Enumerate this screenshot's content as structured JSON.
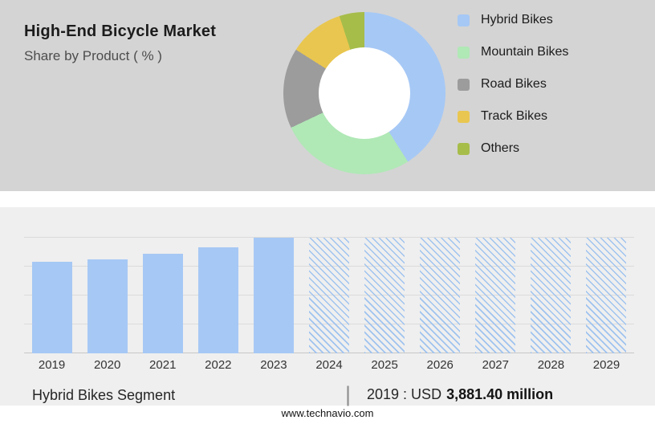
{
  "header": {
    "title": "High-End Bicycle Market",
    "subtitle": "Share by Product ( % )"
  },
  "chart_data": [
    {
      "type": "pie",
      "donut": true,
      "title": "Share by Product ( % )",
      "legend_position": "right",
      "slices": [
        {
          "label": "Hybrid Bikes",
          "value": 41,
          "color": "#a6c8f5"
        },
        {
          "label": "Mountain Bikes",
          "value": 27,
          "color": "#b0e8b6"
        },
        {
          "label": "Road Bikes",
          "value": 16,
          "color": "#9c9c9c"
        },
        {
          "label": "Track Bikes",
          "value": 11,
          "color": "#e9c64f"
        },
        {
          "label": "Others",
          "value": 5,
          "color": "#a6bd4a"
        }
      ]
    },
    {
      "type": "bar",
      "title": "Hybrid Bikes Segment",
      "categories": [
        "2019",
        "2020",
        "2021",
        "2022",
        "2023",
        "2024",
        "2025",
        "2026",
        "2027",
        "2028",
        "2029"
      ],
      "series": [
        {
          "name": "Hybrid Bikes Segment",
          "relative_heights": [
            0.79,
            0.81,
            0.86,
            0.92,
            1.0,
            1.0,
            1.0,
            1.0,
            1.0,
            1.0,
            1.0
          ],
          "style": [
            "solid",
            "solid",
            "solid",
            "solid",
            "solid",
            "hatched",
            "hatched",
            "hatched",
            "hatched",
            "hatched",
            "hatched"
          ]
        }
      ],
      "known_values": {
        "2019": "USD 3,881.40 million"
      },
      "bar_color": "#a6c8f5",
      "hatch_color": "#9fc3ef",
      "grid": true,
      "ylabel": "",
      "xlabel": ""
    }
  ],
  "footer": {
    "segment_label": "Hybrid Bikes Segment",
    "divider": "|",
    "value_prefix": "2019 : USD",
    "value_bold": "3,881.40 million",
    "website": "www.technavio.com"
  },
  "colors": {
    "top_band_bg": "#d4d4d4",
    "chart_band_bg": "#efefef",
    "accent_blue": "#a6c8f5"
  }
}
